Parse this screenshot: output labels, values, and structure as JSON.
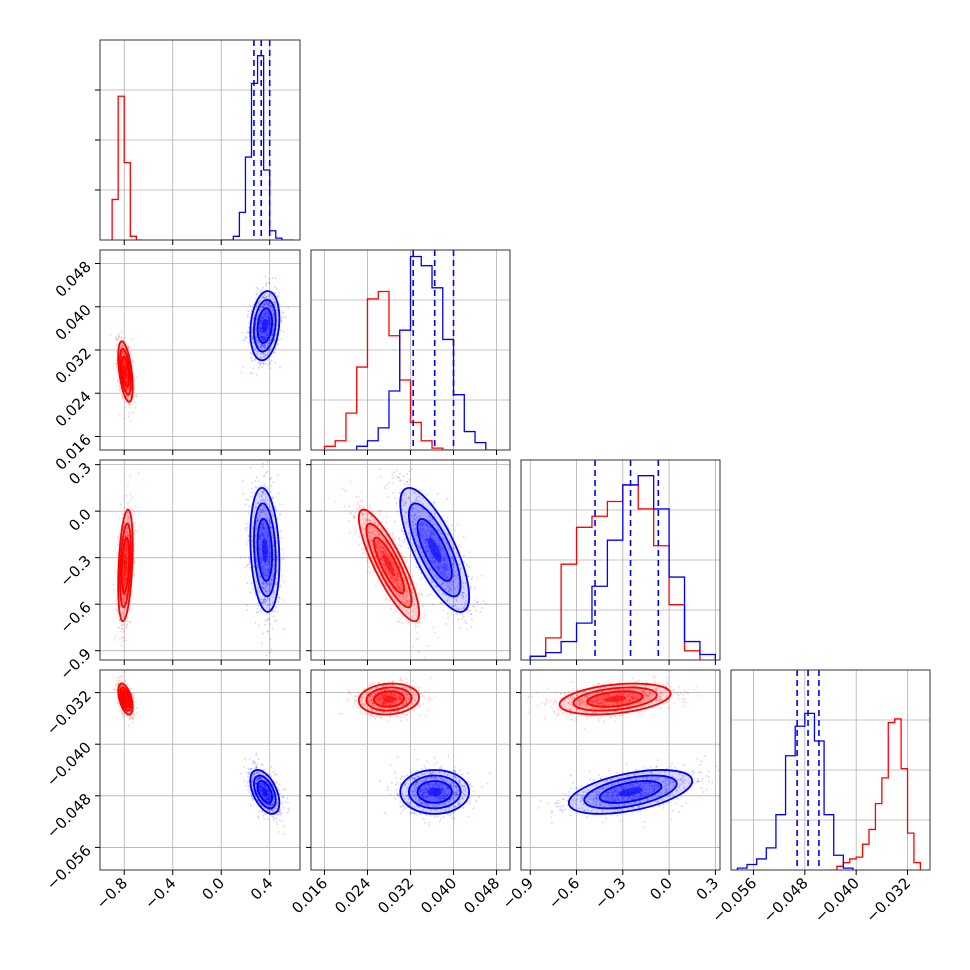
{
  "chart_data": {
    "type": "corner",
    "parameters": 4,
    "grid": true,
    "colors": {
      "red": "#ff0000",
      "blue": "#0000ff"
    },
    "axes": [
      {
        "range": [
          -1.0,
          0.65
        ],
        "ticks": [
          -0.8,
          -0.4,
          0.0,
          0.4
        ],
        "tick_labels": [
          "−0.8",
          "−0.4",
          "0.0",
          "0.4"
        ]
      },
      {
        "range": [
          0.0135,
          0.0505
        ],
        "ticks": [
          0.016,
          0.024,
          0.032,
          0.04,
          0.048
        ],
        "tick_labels": [
          "0.016",
          "0.024",
          "0.032",
          "0.040",
          "0.048"
        ]
      },
      {
        "range": [
          -0.96,
          0.33
        ],
        "ticks": [
          -0.9,
          -0.6,
          -0.3,
          0.0,
          0.3
        ],
        "tick_labels": [
          "−0.9",
          "−0.6",
          "−0.3",
          "0.0",
          "0.3"
        ]
      },
      {
        "range": [
          -0.0595,
          -0.0285
        ],
        "ticks": [
          -0.056,
          -0.048,
          -0.04,
          -0.032
        ],
        "tick_labels": [
          "−0.056",
          "−0.048",
          "−0.040",
          "−0.032"
        ]
      }
    ],
    "series": [
      {
        "color": "#ff0000",
        "means": [
          -0.79,
          0.028,
          -0.35,
          -0.033
        ],
        "stds": [
          0.03,
          0.0028,
          0.18,
          0.0012
        ],
        "histograms": [
          {
            "edges": [
              -0.9,
              -0.85,
              -0.8,
              -0.75,
              -0.7,
              -0.65
            ],
            "counts": [
              0.22,
              0.78,
              0.42,
              0.02,
              0
            ]
          },
          {
            "edges": [
              0.016,
              0.018,
              0.02,
              0.022,
              0.024,
              0.026,
              0.028,
              0.03,
              0.032,
              0.034,
              0.036,
              0.038,
              0.04
            ],
            "counts": [
              0.02,
              0.05,
              0.2,
              0.45,
              0.82,
              0.86,
              0.62,
              0.38,
              0.15,
              0.05,
              0.01,
              0
            ]
          },
          {
            "edges": [
              -0.9,
              -0.8,
              -0.7,
              -0.6,
              -0.5,
              -0.4,
              -0.3,
              -0.2,
              -0.1,
              0.0,
              0.1,
              0.2
            ],
            "counts": [
              0.02,
              0.12,
              0.52,
              0.72,
              0.78,
              0.86,
              0.95,
              0.82,
              0.62,
              0.3,
              0.05
            ]
          },
          {
            "edges": [
              -0.044,
              -0.043,
              -0.042,
              -0.041,
              -0.04,
              -0.039,
              -0.038,
              -0.037,
              -0.036,
              -0.035,
              -0.034,
              -0.033,
              -0.032,
              -0.031,
              -0.03
            ],
            "counts": [
              0,
              0.02,
              0.04,
              0.06,
              0.07,
              0.14,
              0.22,
              0.36,
              0.5,
              0.8,
              0.82,
              0.55,
              0.2,
              0.04
            ]
          }
        ]
      },
      {
        "color": "#0000ff",
        "means": [
          0.36,
          0.0365,
          -0.25,
          -0.0474
        ],
        "stds": [
          0.06,
          0.0032,
          0.2,
          0.0017
        ],
        "quantiles": [
          [
            0.27,
            0.33,
            0.4
          ],
          [
            0.0325,
            0.0365,
            0.04
          ],
          [
            -0.48,
            -0.25,
            -0.07
          ],
          [
            -0.0492,
            -0.0475,
            -0.0458
          ]
        ],
        "histograms": [
          {
            "edges": [
              0.0,
              0.1,
              0.15,
              0.2,
              0.25,
              0.3,
              0.35,
              0.4,
              0.45,
              0.5,
              0.6
            ],
            "counts": [
              0.0,
              0.02,
              0.15,
              0.45,
              0.85,
              1.0,
              0.38,
              0.05,
              0.01,
              0
            ]
          },
          {
            "edges": [
              0.022,
              0.024,
              0.026,
              0.028,
              0.03,
              0.032,
              0.034,
              0.036,
              0.038,
              0.04,
              0.042,
              0.044,
              0.046,
              0.048
            ],
            "counts": [
              0.02,
              0.05,
              0.12,
              0.32,
              0.65,
              1.05,
              1.0,
              0.88,
              0.6,
              0.3,
              0.1,
              0.04,
              0
            ]
          },
          {
            "edges": [
              -0.9,
              -0.8,
              -0.7,
              -0.6,
              -0.5,
              -0.4,
              -0.3,
              -0.2,
              -0.1,
              0.0,
              0.1,
              0.2,
              0.3
            ],
            "counts": [
              0.02,
              0.04,
              0.1,
              0.2,
              0.4,
              0.65,
              0.95,
              1.0,
              0.82,
              0.45,
              0.1,
              0.03
            ]
          },
          {
            "edges": [
              -0.0585,
              -0.057,
              -0.0555,
              -0.054,
              -0.0525,
              -0.051,
              -0.0495,
              -0.048,
              -0.0465,
              -0.045,
              -0.0435,
              -0.042,
              -0.0405
            ],
            "counts": [
              0.01,
              0.03,
              0.06,
              0.12,
              0.3,
              0.62,
              0.78,
              0.85,
              0.7,
              0.3,
              0.08,
              0.01
            ]
          }
        ]
      }
    ]
  }
}
